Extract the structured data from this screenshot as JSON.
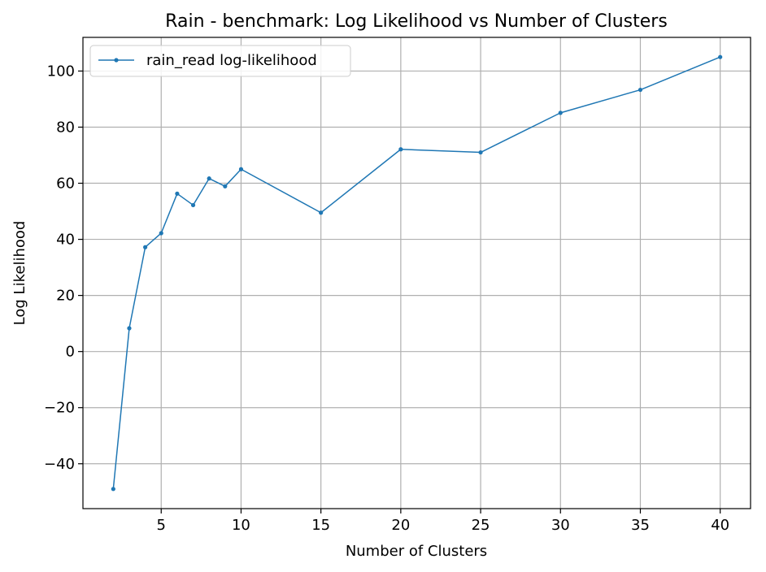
{
  "chart_data": {
    "type": "line",
    "title": "Rain - benchmark: Log Likelihood vs Number of Clusters",
    "xlabel": "Number of Clusters",
    "ylabel": "Log Likelihood",
    "xlim": [
      0.1,
      41.9
    ],
    "ylim": [
      -56,
      112
    ],
    "x_ticks": [
      5,
      10,
      15,
      20,
      25,
      30,
      35,
      40
    ],
    "y_ticks": [
      -40,
      -20,
      0,
      20,
      40,
      60,
      80,
      100
    ],
    "x_tick_labels": [
      "5",
      "10",
      "15",
      "20",
      "25",
      "30",
      "35",
      "40"
    ],
    "y_tick_labels": [
      "−40",
      "−20",
      "0",
      "20",
      "40",
      "60",
      "80",
      "100"
    ],
    "grid": true,
    "legend_position": "top-left",
    "colors": {
      "series": "#1f77b4",
      "grid": "#b0b0b0",
      "axes": "#000000"
    },
    "series": [
      {
        "name": "rain_read log-likelihood",
        "marker": "point",
        "x": [
          2,
          3,
          4,
          5,
          6,
          7,
          8,
          9,
          10,
          15,
          20,
          25,
          30,
          35,
          40
        ],
        "y": [
          -49,
          8.3,
          37.2,
          42.2,
          56.3,
          52.2,
          61.7,
          58.9,
          65.0,
          49.5,
          72.1,
          71.0,
          85.1,
          93.3,
          105.0
        ]
      }
    ]
  }
}
